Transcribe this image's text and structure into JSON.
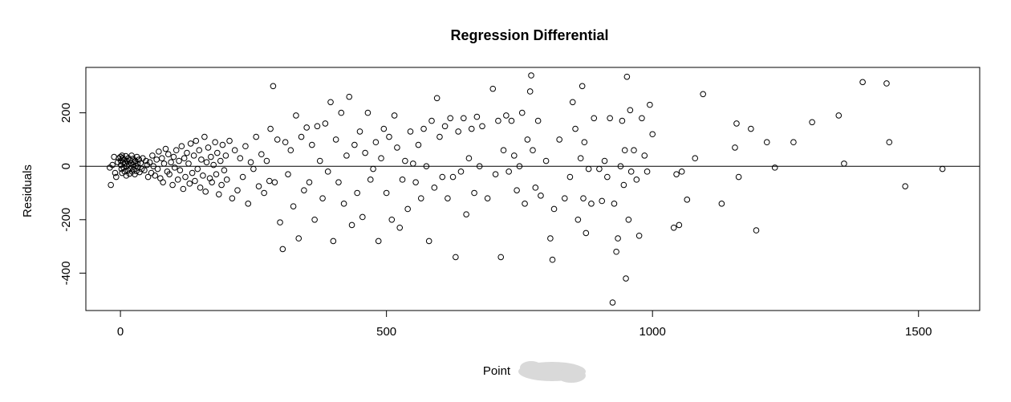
{
  "chart_data": {
    "type": "scatter",
    "title": "Regression Differential",
    "xlabel": "Point",
    "ylabel": "Residuals",
    "xlim": [
      -65,
      1615
    ],
    "ylim": [
      -540,
      370
    ],
    "x_ticks": [
      0,
      500,
      1000,
      1500
    ],
    "x_tick_labels": [
      "0",
      "500",
      "1000",
      "1500"
    ],
    "y_ticks": [
      -400,
      -200,
      0,
      200
    ],
    "y_tick_labels": [
      "-400",
      "-200",
      "0",
      "200"
    ],
    "reference_line_y": 0,
    "grid": false,
    "legend": "none",
    "marker": "open-circle",
    "colors": {
      "points": "#000000",
      "background": "#ffffff"
    },
    "points": [
      [
        0,
        35
      ],
      [
        1,
        20
      ],
      [
        1,
        5
      ],
      [
        2,
        -10
      ],
      [
        3,
        40
      ],
      [
        3,
        -25
      ],
      [
        4,
        30
      ],
      [
        5,
        15
      ],
      [
        6,
        -5
      ],
      [
        7,
        25
      ],
      [
        8,
        -20
      ],
      [
        9,
        10
      ],
      [
        10,
        38
      ],
      [
        11,
        -35
      ],
      [
        12,
        0
      ],
      [
        13,
        18
      ],
      [
        14,
        -15
      ],
      [
        15,
        30
      ],
      [
        16,
        8
      ],
      [
        17,
        -28
      ],
      [
        18,
        22
      ],
      [
        19,
        -8
      ],
      [
        20,
        12
      ],
      [
        21,
        40
      ],
      [
        22,
        -20
      ],
      [
        23,
        5
      ],
      [
        24,
        28
      ],
      [
        25,
        -12
      ],
      [
        26,
        15
      ],
      [
        27,
        -30
      ],
      [
        28,
        20
      ],
      [
        29,
        2
      ],
      [
        30,
        -18
      ],
      [
        31,
        35
      ],
      [
        32,
        10
      ],
      [
        33,
        -5
      ],
      [
        35,
        25
      ],
      [
        36,
        -22
      ],
      [
        38,
        12
      ],
      [
        40,
        -10
      ],
      [
        42,
        30
      ],
      [
        45,
        -15
      ],
      [
        48,
        20
      ],
      [
        50,
        5
      ],
      [
        52,
        -40
      ],
      [
        55,
        15
      ],
      [
        58,
        -25
      ],
      [
        60,
        40
      ],
      [
        62,
        0
      ],
      [
        65,
        -35
      ],
      [
        68,
        25
      ],
      [
        70,
        -10
      ],
      [
        72,
        55
      ],
      [
        75,
        -45
      ],
      [
        78,
        30
      ],
      [
        80,
        -60
      ],
      [
        82,
        10
      ],
      [
        85,
        65
      ],
      [
        88,
        -20
      ],
      [
        90,
        45
      ],
      [
        92,
        -30
      ],
      [
        95,
        15
      ],
      [
        98,
        -70
      ],
      [
        100,
        35
      ],
      [
        102,
        -5
      ],
      [
        105,
        60
      ],
      [
        108,
        -50
      ],
      [
        110,
        20
      ],
      [
        112,
        -15
      ],
      [
        115,
        75
      ],
      [
        118,
        -85
      ],
      [
        120,
        30
      ],
      [
        122,
        -40
      ],
      [
        125,
        50
      ],
      [
        128,
        10
      ],
      [
        130,
        -65
      ],
      [
        132,
        85
      ],
      [
        135,
        -25
      ],
      [
        138,
        40
      ],
      [
        140,
        -55
      ],
      [
        142,
        95
      ],
      [
        145,
        -10
      ],
      [
        148,
        60
      ],
      [
        150,
        -80
      ],
      [
        152,
        25
      ],
      [
        155,
        -35
      ],
      [
        158,
        110
      ],
      [
        160,
        -95
      ],
      [
        162,
        15
      ],
      [
        165,
        70
      ],
      [
        168,
        -45
      ],
      [
        170,
        35
      ],
      [
        172,
        -60
      ],
      [
        175,
        5
      ],
      [
        178,
        90
      ],
      [
        180,
        -30
      ],
      [
        182,
        50
      ],
      [
        185,
        -105
      ],
      [
        188,
        20
      ],
      [
        190,
        -70
      ],
      [
        192,
        80
      ],
      [
        195,
        -15
      ],
      [
        198,
        40
      ],
      [
        200,
        -50
      ],
      [
        205,
        95
      ],
      [
        210,
        -120
      ],
      [
        215,
        60
      ],
      [
        220,
        -90
      ],
      [
        225,
        30
      ],
      [
        230,
        -40
      ],
      [
        235,
        75
      ],
      [
        240,
        -140
      ],
      [
        245,
        15
      ],
      [
        250,
        -10
      ],
      [
        255,
        110
      ],
      [
        260,
        -75
      ],
      [
        265,
        45
      ],
      [
        270,
        -100
      ],
      [
        275,
        20
      ],
      [
        280,
        -55
      ],
      [
        -18,
        -70
      ],
      [
        -12,
        35
      ],
      [
        -8,
        -40
      ],
      [
        -5,
        15
      ],
      [
        -15,
        5
      ],
      [
        -10,
        -25
      ],
      [
        -3,
        30
      ],
      [
        -20,
        -5
      ],
      [
        282,
        140
      ],
      [
        287,
        300
      ],
      [
        290,
        -60
      ],
      [
        295,
        100
      ],
      [
        300,
        -210
      ],
      [
        305,
        -310
      ],
      [
        310,
        90
      ],
      [
        315,
        -30
      ],
      [
        320,
        60
      ],
      [
        325,
        -150
      ],
      [
        330,
        190
      ],
      [
        335,
        -270
      ],
      [
        340,
        110
      ],
      [
        345,
        -90
      ],
      [
        350,
        145
      ],
      [
        355,
        -60
      ],
      [
        360,
        80
      ],
      [
        365,
        -200
      ],
      [
        370,
        150
      ],
      [
        375,
        20
      ],
      [
        380,
        -120
      ],
      [
        385,
        160
      ],
      [
        390,
        -20
      ],
      [
        395,
        240
      ],
      [
        400,
        -280
      ],
      [
        405,
        100
      ],
      [
        410,
        -60
      ],
      [
        415,
        200
      ],
      [
        420,
        -140
      ],
      [
        425,
        40
      ],
      [
        430,
        260
      ],
      [
        435,
        -220
      ],
      [
        440,
        80
      ],
      [
        445,
        -100
      ],
      [
        450,
        130
      ],
      [
        455,
        -190
      ],
      [
        460,
        50
      ],
      [
        465,
        200
      ],
      [
        470,
        -50
      ],
      [
        475,
        -10
      ],
      [
        480,
        90
      ],
      [
        485,
        -280
      ],
      [
        490,
        30
      ],
      [
        495,
        140
      ],
      [
        500,
        -100
      ],
      [
        505,
        110
      ],
      [
        510,
        -200
      ],
      [
        515,
        190
      ],
      [
        520,
        70
      ],
      [
        525,
        -230
      ],
      [
        530,
        -50
      ],
      [
        535,
        20
      ],
      [
        540,
        -160
      ],
      [
        545,
        130
      ],
      [
        550,
        10
      ],
      [
        555,
        -60
      ],
      [
        560,
        80
      ],
      [
        565,
        -120
      ],
      [
        570,
        140
      ],
      [
        575,
        0
      ],
      [
        580,
        -280
      ],
      [
        585,
        170
      ],
      [
        590,
        -80
      ],
      [
        595,
        255
      ],
      [
        600,
        110
      ],
      [
        605,
        -40
      ],
      [
        610,
        150
      ],
      [
        615,
        -120
      ],
      [
        620,
        180
      ],
      [
        625,
        -40
      ],
      [
        630,
        -340
      ],
      [
        635,
        130
      ],
      [
        640,
        -20
      ],
      [
        645,
        180
      ],
      [
        650,
        -180
      ],
      [
        655,
        30
      ],
      [
        660,
        140
      ],
      [
        665,
        -100
      ],
      [
        670,
        185
      ],
      [
        675,
        0
      ],
      [
        680,
        150
      ],
      [
        690,
        -120
      ],
      [
        700,
        290
      ],
      [
        705,
        -30
      ],
      [
        710,
        170
      ],
      [
        715,
        -340
      ],
      [
        720,
        60
      ],
      [
        725,
        190
      ],
      [
        730,
        -20
      ],
      [
        735,
        170
      ],
      [
        740,
        40
      ],
      [
        745,
        -90
      ],
      [
        750,
        0
      ],
      [
        755,
        200
      ],
      [
        760,
        -140
      ],
      [
        765,
        100
      ],
      [
        770,
        280
      ],
      [
        772,
        340
      ],
      [
        775,
        60
      ],
      [
        780,
        -80
      ],
      [
        785,
        170
      ],
      [
        790,
        -110
      ],
      [
        800,
        20
      ],
      [
        808,
        -270
      ],
      [
        812,
        -350
      ],
      [
        815,
        -160
      ],
      [
        825,
        100
      ],
      [
        835,
        -120
      ],
      [
        845,
        -40
      ],
      [
        850,
        240
      ],
      [
        855,
        140
      ],
      [
        860,
        -200
      ],
      [
        865,
        30
      ],
      [
        868,
        300
      ],
      [
        870,
        -120
      ],
      [
        872,
        90
      ],
      [
        875,
        -250
      ],
      [
        880,
        -10
      ],
      [
        885,
        -140
      ],
      [
        890,
        180
      ],
      [
        900,
        -10
      ],
      [
        905,
        -130
      ],
      [
        910,
        20
      ],
      [
        915,
        -40
      ],
      [
        920,
        180
      ],
      [
        925,
        -510
      ],
      [
        928,
        -140
      ],
      [
        932,
        -320
      ],
      [
        935,
        -270
      ],
      [
        940,
        0
      ],
      [
        943,
        170
      ],
      [
        946,
        -70
      ],
      [
        948,
        60
      ],
      [
        950,
        -420
      ],
      [
        952,
        335
      ],
      [
        955,
        -200
      ],
      [
        958,
        210
      ],
      [
        960,
        -20
      ],
      [
        965,
        60
      ],
      [
        970,
        -50
      ],
      [
        975,
        -260
      ],
      [
        980,
        180
      ],
      [
        985,
        40
      ],
      [
        990,
        -20
      ],
      [
        995,
        230
      ],
      [
        1000,
        120
      ],
      [
        1040,
        -230
      ],
      [
        1045,
        -30
      ],
      [
        1050,
        -220
      ],
      [
        1055,
        -20
      ],
      [
        1065,
        -125
      ],
      [
        1080,
        30
      ],
      [
        1095,
        270
      ],
      [
        1130,
        -140
      ],
      [
        1155,
        70
      ],
      [
        1158,
        160
      ],
      [
        1162,
        -40
      ],
      [
        1185,
        140
      ],
      [
        1195,
        -240
      ],
      [
        1215,
        90
      ],
      [
        1230,
        -5
      ],
      [
        1265,
        90
      ],
      [
        1300,
        165
      ],
      [
        1350,
        190
      ],
      [
        1360,
        10
      ],
      [
        1395,
        315
      ],
      [
        1440,
        310
      ],
      [
        1445,
        90
      ],
      [
        1475,
        -75
      ],
      [
        1545,
        -10
      ]
    ]
  }
}
